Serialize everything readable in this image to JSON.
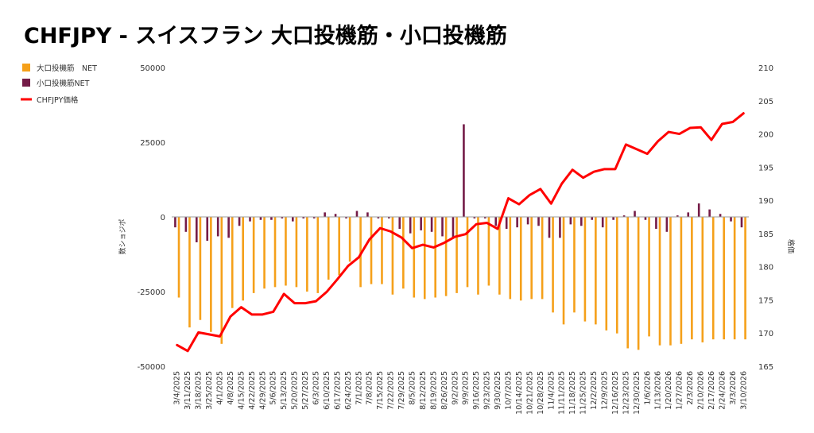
{
  "chart_data": {
    "type": "bar+line",
    "title": "CHFJPY - スイスフラン 大口投機筋・小口投機筋",
    "ylabel_left": "数ショジポ",
    "ylabel_right": "格価",
    "ylim_left": [
      -50000,
      50000
    ],
    "ylim_right": [
      165,
      210
    ],
    "yticks_left": [
      "50000",
      "25000",
      "0",
      "-25000",
      "-50000"
    ],
    "yticks_right": [
      "210",
      "205",
      "200",
      "195",
      "190",
      "185",
      "180",
      "175",
      "170",
      "165"
    ],
    "legend_position": "top-left",
    "colors": {
      "large": "#F5A01A",
      "small": "#741B47",
      "price": "#FF0000"
    },
    "x": [
      "3/4/2025",
      "3/11/2025",
      "3/18/2025",
      "3/25/2025",
      "4/1/2025",
      "4/8/2025",
      "4/15/2025",
      "4/22/2025",
      "4/29/2025",
      "5/6/2025",
      "5/13/2025",
      "5/20/2025",
      "5/27/2025",
      "6/3/2025",
      "6/10/2025",
      "6/17/2025",
      "6/24/2025",
      "7/1/2025",
      "7/8/2025",
      "7/15/2025",
      "7/22/2025",
      "7/29/2025",
      "8/5/2025",
      "8/12/2025",
      "8/19/2025",
      "8/26/2025",
      "9/2/2025",
      "9/9/2025",
      "9/16/2025",
      "9/23/2025",
      "9/30/2025",
      "10/7/2025",
      "10/14/2025",
      "10/21/2025",
      "10/28/2025",
      "11/4/2025",
      "11/11/2025",
      "11/18/2025",
      "11/25/2025",
      "12/2/2025",
      "12/9/2025",
      "12/16/2025",
      "12/23/2025",
      "12/30/2025",
      "1/6/2026",
      "1/13/2026",
      "1/20/2026",
      "1/27/2026",
      "2/3/2026",
      "2/10/2026",
      "2/17/2026",
      "2/24/2026",
      "3/3/2026",
      "3/10/2026"
    ],
    "x_label_every": 1,
    "series": [
      {
        "name": "大口投機筋　NET",
        "type": "bar",
        "values": [
          -27000,
          -37000,
          -34500,
          -38500,
          -42500,
          -30500,
          -28000,
          -25500,
          -24000,
          -23500,
          -23000,
          -23500,
          -25000,
          -25500,
          -21000,
          -19500,
          -15000,
          -23500,
          -22500,
          -22500,
          -26000,
          -24000,
          -27000,
          -27500,
          -27000,
          -26500,
          -25500,
          -23500,
          -26000,
          -23000,
          -26000,
          -27500,
          -28000,
          -27500,
          -27500,
          -32000,
          -36000,
          -32000,
          -35000,
          -36000,
          -38000,
          -39000,
          -44000,
          -44500,
          -40000,
          -43000,
          -43000,
          -42500,
          -41000,
          -42000,
          -41000,
          -41000,
          -41000,
          -41000
        ]
      },
      {
        "name": "小口投機筋NET",
        "type": "bar",
        "values": [
          -3500,
          -5000,
          -8500,
          -8000,
          -6500,
          -7000,
          -3000,
          -1500,
          -1000,
          -1000,
          -500,
          -1500,
          -500,
          -500,
          1500,
          1000,
          -500,
          2000,
          1500,
          -500,
          -500,
          -4000,
          -5500,
          -4500,
          -5000,
          -6500,
          -7000,
          31000,
          -500,
          -500,
          -3000,
          -4000,
          -3500,
          -2500,
          -3000,
          -7000,
          -7000,
          -2500,
          -3000,
          -1000,
          -3500,
          -1000,
          500,
          2000,
          -1000,
          -4000,
          -5000,
          500,
          1500,
          4500,
          2500,
          1000,
          -1500,
          -3500
        ]
      },
      {
        "name": "CHFJPY価格",
        "type": "line",
        "values": [
          168.2,
          167.3,
          170.1,
          169.8,
          169.5,
          172.5,
          173.9,
          172.8,
          172.8,
          173.2,
          175.9,
          174.5,
          174.5,
          174.8,
          176.2,
          178.1,
          180.1,
          181.4,
          184.1,
          185.8,
          185.3,
          184.4,
          182.8,
          183.3,
          182.9,
          183.6,
          184.5,
          184.9,
          186.4,
          186.6,
          185.7,
          190.3,
          189.4,
          190.8,
          191.7,
          189.5,
          192.5,
          194.6,
          193.4,
          194.3,
          194.7,
          194.7,
          198.4,
          197.7,
          197.0,
          198.9,
          200.3,
          200.0,
          200.9,
          201.0,
          199.1,
          201.5,
          201.8,
          203.1
        ]
      }
    ]
  }
}
